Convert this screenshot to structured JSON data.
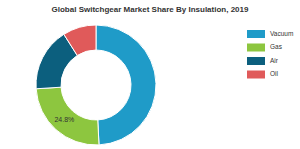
{
  "chart_data": {
    "type": "pie",
    "title": "Global Switchgear Market Share By Insulation, 2019",
    "categories": [
      "Vacuum",
      "Gas",
      "Air",
      "Oil"
    ],
    "values": [
      49.2,
      24.8,
      17.0,
      9.0
    ],
    "colors": [
      "#1f9bc8",
      "#8dc63f",
      "#0c5f7e",
      "#e05a5a"
    ],
    "data_labels": true,
    "value_labels": [
      null,
      "24.8%",
      null,
      null
    ],
    "legend": "right"
  }
}
